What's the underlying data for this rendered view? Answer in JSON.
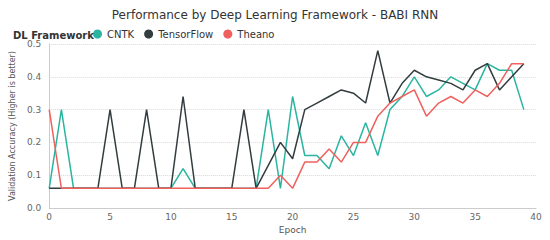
{
  "chart_data": {
    "type": "line",
    "title": "Performance by Deep Learning Framework - BABI RNN",
    "legend_title": "DL Framework",
    "legend": "top-left",
    "x_label": "Epoch",
    "y_label": "Validation Accuracy (Higher is better)",
    "x": [
      0,
      1,
      2,
      3,
      4,
      5,
      6,
      7,
      8,
      9,
      10,
      11,
      12,
      13,
      14,
      15,
      16,
      17,
      18,
      19,
      20,
      21,
      22,
      23,
      24,
      25,
      26,
      27,
      28,
      29,
      30,
      31,
      32,
      33,
      34,
      35,
      36,
      37,
      38,
      39
    ],
    "series": [
      {
        "name": "CNTK",
        "color": "#2ab5a0",
        "values": [
          0.06,
          0.3,
          0.06,
          0.06,
          0.06,
          0.06,
          0.06,
          0.06,
          0.06,
          0.06,
          0.06,
          0.12,
          0.06,
          0.06,
          0.06,
          0.06,
          0.06,
          0.06,
          0.3,
          0.06,
          0.34,
          0.16,
          0.16,
          0.12,
          0.22,
          0.16,
          0.26,
          0.16,
          0.3,
          0.34,
          0.4,
          0.34,
          0.36,
          0.4,
          0.38,
          0.36,
          0.44,
          0.42,
          0.42,
          0.3
        ]
      },
      {
        "name": "TensorFlow",
        "color": "#333d3f",
        "values": [
          0.06,
          0.06,
          0.06,
          0.06,
          0.06,
          0.3,
          0.06,
          0.06,
          0.3,
          0.06,
          0.06,
          0.34,
          0.06,
          0.06,
          0.06,
          0.06,
          0.3,
          0.06,
          0.13,
          0.2,
          0.15,
          0.3,
          0.32,
          0.34,
          0.36,
          0.35,
          0.32,
          0.48,
          0.32,
          0.38,
          0.42,
          0.4,
          0.39,
          0.38,
          0.36,
          0.42,
          0.44,
          0.36,
          0.4,
          0.44
        ]
      },
      {
        "name": "Theano",
        "color": "#f0605d",
        "values": [
          0.3,
          0.06,
          0.06,
          0.06,
          0.06,
          0.06,
          0.06,
          0.06,
          0.06,
          0.06,
          0.06,
          0.06,
          0.06,
          0.06,
          0.06,
          0.06,
          0.06,
          0.06,
          0.06,
          0.1,
          0.06,
          0.14,
          0.14,
          0.18,
          0.14,
          0.2,
          0.2,
          0.28,
          0.32,
          0.34,
          0.36,
          0.28,
          0.32,
          0.34,
          0.32,
          0.36,
          0.34,
          0.38,
          0.44,
          0.44
        ]
      }
    ],
    "xlim": [
      0,
      40
    ],
    "xticks": [
      0,
      5,
      10,
      15,
      20,
      25,
      30,
      35,
      40
    ],
    "ylim": [
      0,
      0.5
    ],
    "yticks": [
      {
        "value": 0,
        "label": "0.0"
      },
      0.1,
      0.2,
      0.3,
      0.4,
      0.5
    ],
    "grid": true
  }
}
